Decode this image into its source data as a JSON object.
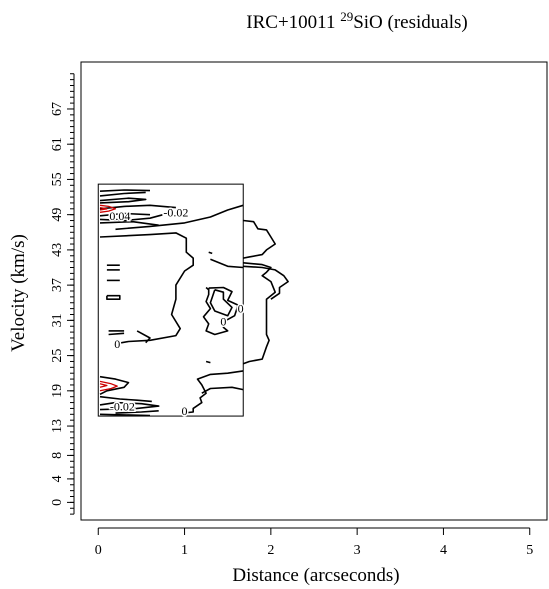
{
  "chart_data": {
    "type": "contour",
    "title_prefix": "IRC+10011 ",
    "title_superscript": "29",
    "title_suffix": "SiO (residuals)",
    "xlabel": "Distance (arcseconds)",
    "ylabel": "Velocity (km/s)",
    "xlim": [
      -0.2,
      5.2
    ],
    "ylim": [
      -3,
      75
    ],
    "x_ticks": [
      0,
      1,
      2,
      3,
      4,
      5
    ],
    "y_tick_labels": [
      0,
      4,
      8,
      13,
      19,
      25,
      31,
      37,
      43,
      49,
      55,
      61,
      67
    ],
    "y_minor_ticks": [
      -2,
      -1,
      0,
      1,
      2,
      3,
      4,
      5,
      6,
      7,
      8,
      9,
      10,
      11,
      12,
      13,
      14,
      15,
      16,
      17,
      18,
      19,
      20,
      21,
      22,
      23,
      24,
      25,
      26,
      27,
      28,
      29,
      30,
      31,
      32,
      33,
      34,
      35,
      36,
      37,
      38,
      39,
      40,
      41,
      42,
      43,
      44,
      45,
      46,
      47,
      48,
      49,
      50,
      51,
      52,
      53,
      54,
      55,
      56,
      57,
      58,
      59,
      60,
      61,
      62,
      63,
      64,
      65,
      66,
      67,
      68,
      69,
      70,
      71,
      72,
      73
    ],
    "data_box": {
      "x": [
        0,
        1.68
      ],
      "y": [
        14.7,
        54.2
      ]
    },
    "contour_labels": [
      {
        "text": "0.04",
        "x": 0.25,
        "y": 48.8,
        "color": "#000000"
      },
      {
        "text": "-0.02",
        "x": 0.9,
        "y": 49.4,
        "color": "#000000"
      },
      {
        "text": "0",
        "x": 1.65,
        "y": 33.0,
        "color": "#000000"
      },
      {
        "text": "0",
        "x": 1.45,
        "y": 30.8,
        "color": "#000000"
      },
      {
        "text": "0",
        "x": 0.22,
        "y": 27.0,
        "color": "#000000"
      },
      {
        "text": "-0.02",
        "x": 0.28,
        "y": 16.3,
        "color": "#000000"
      },
      {
        "text": "0",
        "x": 1.0,
        "y": 15.6,
        "color": "#000000"
      }
    ],
    "contours": [
      {
        "level": 0,
        "color": "#000000",
        "points": [
          [
            0.2,
            46.5
          ],
          [
            0.6,
            47.0
          ],
          [
            1.0,
            47.6
          ],
          [
            1.3,
            48.6
          ],
          [
            1.5,
            49.8
          ],
          [
            1.68,
            50.6
          ]
        ]
      },
      {
        "level": 0,
        "color": "#000000",
        "points": [
          [
            0.02,
            45.2
          ],
          [
            0.6,
            45.6
          ],
          [
            0.9,
            45.9
          ],
          [
            1.02,
            45.0
          ],
          [
            1.02,
            42.6
          ],
          [
            1.1,
            41.6
          ],
          [
            1.1,
            40.4
          ],
          [
            1.0,
            39.4
          ],
          [
            0.9,
            37.0
          ],
          [
            0.9,
            34.6
          ],
          [
            0.85,
            32.0
          ],
          [
            0.95,
            29.6
          ],
          [
            0.9,
            28.4
          ],
          [
            0.6,
            27.6
          ],
          [
            0.35,
            27.4
          ],
          [
            0.2,
            27.0
          ]
        ]
      },
      {
        "level": 0,
        "color": "#000000",
        "points": [
          [
            1.68,
            48.0
          ],
          [
            1.8,
            47.8
          ],
          [
            1.85,
            46.6
          ],
          [
            1.95,
            46.4
          ],
          [
            2.0,
            45.2
          ],
          [
            2.05,
            44.0
          ],
          [
            1.95,
            43.0
          ],
          [
            1.9,
            42.2
          ],
          [
            1.75,
            41.8
          ],
          [
            1.68,
            41.6
          ]
        ]
      },
      {
        "level": 0,
        "color": "#000000",
        "points": [
          [
            1.68,
            40.8
          ],
          [
            1.9,
            40.5
          ],
          [
            2.0,
            40.0
          ],
          [
            1.95,
            39.2
          ],
          [
            1.9,
            38.6
          ],
          [
            2.0,
            37.6
          ],
          [
            2.05,
            35.8
          ],
          [
            1.95,
            34.6
          ],
          [
            1.95,
            32.6
          ],
          [
            1.95,
            30.8
          ],
          [
            1.95,
            28.6
          ],
          [
            1.98,
            27.6
          ],
          [
            1.95,
            26.5
          ],
          [
            1.9,
            24.4
          ],
          [
            1.75,
            24.0
          ],
          [
            1.68,
            23.6
          ]
        ]
      },
      {
        "level": 0,
        "color": "#000000",
        "points": [
          [
            1.3,
            41.4
          ],
          [
            1.5,
            40.2
          ],
          [
            1.68,
            40.0
          ]
        ]
      },
      {
        "level": 0,
        "color": "#000000",
        "points": [
          [
            1.68,
            40.2
          ],
          [
            1.9,
            40.0
          ],
          [
            2.05,
            39.6
          ],
          [
            2.15,
            38.6
          ],
          [
            2.2,
            37.6
          ],
          [
            2.1,
            36.6
          ],
          [
            2.1,
            35.6
          ],
          [
            2.0,
            34.6
          ]
        ]
      },
      {
        "level": 0,
        "color": "#000000",
        "points": [
          [
            1.28,
            36.5
          ],
          [
            1.45,
            36.6
          ],
          [
            1.55,
            35.9
          ],
          [
            1.5,
            34.4
          ],
          [
            1.62,
            33.6
          ],
          [
            1.58,
            31.8
          ],
          [
            1.48,
            31.0
          ],
          [
            1.45,
            29.8
          ],
          [
            1.5,
            29.2
          ],
          [
            1.35,
            28.6
          ],
          [
            1.25,
            29.2
          ],
          [
            1.28,
            30.4
          ],
          [
            1.22,
            31.6
          ],
          [
            1.3,
            33.0
          ],
          [
            1.25,
            34.2
          ],
          [
            1.28,
            35.4
          ],
          [
            1.28,
            36.5
          ]
        ]
      },
      {
        "level": 0,
        "color": "#000000",
        "points": [
          [
            1.35,
            36.2
          ],
          [
            1.3,
            34.0
          ],
          [
            1.35,
            32.6
          ],
          [
            1.5,
            31.8
          ],
          [
            1.55,
            33.2
          ],
          [
            1.45,
            34.6
          ],
          [
            1.45,
            35.8
          ],
          [
            1.35,
            36.2
          ]
        ]
      },
      {
        "level": 0,
        "color": "#000000",
        "points": [
          [
            0.45,
            29.2
          ],
          [
            0.6,
            28.0
          ],
          [
            0.55,
            27.2
          ]
        ]
      },
      {
        "level": 0,
        "color": "#000000",
        "points": [
          [
            1.68,
            22.4
          ],
          [
            1.5,
            22.0
          ],
          [
            1.3,
            21.8
          ],
          [
            1.15,
            21.0
          ],
          [
            1.2,
            20.0
          ],
          [
            1.25,
            18.6
          ],
          [
            1.18,
            17.8
          ],
          [
            1.2,
            17.0
          ],
          [
            1.1,
            16.0
          ],
          [
            1.1,
            15.4
          ],
          [
            0.98,
            15.2
          ]
        ]
      },
      {
        "level": 0,
        "color": "#000000",
        "points": [
          [
            1.2,
            18.6
          ],
          [
            1.3,
            19.4
          ],
          [
            1.55,
            19.6
          ],
          [
            1.68,
            19.2
          ]
        ]
      },
      {
        "level": 0,
        "color": "#000000",
        "points": [
          [
            0.2,
            15.2
          ],
          [
            0.5,
            15.4
          ],
          [
            0.7,
            15.6
          ]
        ]
      },
      {
        "level": -0.02,
        "color": "#000000",
        "points": [
          [
            0.02,
            53.0
          ],
          [
            0.3,
            53.2
          ],
          [
            0.6,
            53.1
          ]
        ]
      },
      {
        "level": -0.02,
        "color": "#000000",
        "points": [
          [
            0.02,
            52.2
          ],
          [
            0.3,
            52.6
          ],
          [
            0.55,
            52.8
          ]
        ]
      },
      {
        "level": -0.02,
        "color": "#000000",
        "points": [
          [
            0.02,
            51.4
          ],
          [
            0.35,
            51.8
          ],
          [
            0.55,
            51.6
          ],
          [
            0.35,
            51.2
          ],
          [
            0.02,
            51.0
          ]
        ]
      },
      {
        "level": -0.02,
        "color": "#000000",
        "points": [
          [
            0.02,
            50.0
          ],
          [
            0.3,
            50.4
          ],
          [
            0.6,
            50.6
          ],
          [
            0.9,
            50.2
          ]
        ]
      },
      {
        "level": -0.02,
        "color": "#000000",
        "points": [
          [
            0.02,
            48.8
          ],
          [
            0.3,
            49.2
          ],
          [
            0.6,
            49.0
          ]
        ]
      },
      {
        "level": -0.02,
        "color": "#000000",
        "points": [
          [
            0.02,
            48.2
          ],
          [
            0.3,
            48.0
          ],
          [
            0.6,
            48.4
          ],
          [
            0.75,
            49.0
          ]
        ]
      },
      {
        "level": -0.02,
        "color": "#000000",
        "points": [
          [
            0.02,
            47.6
          ],
          [
            0.4,
            47.8
          ],
          [
            0.7,
            47.2
          ]
        ]
      },
      {
        "level": -0.02,
        "color": "#000000",
        "points": [
          [
            0.1,
            40.4
          ],
          [
            0.25,
            40.4
          ]
        ]
      },
      {
        "level": -0.02,
        "color": "#000000",
        "points": [
          [
            0.1,
            39.6
          ],
          [
            0.25,
            39.6
          ]
        ]
      },
      {
        "level": -0.02,
        "color": "#000000",
        "points": [
          [
            0.1,
            37.8
          ],
          [
            0.25,
            37.8
          ]
        ]
      },
      {
        "level": -0.02,
        "color": "#000000",
        "points": [
          [
            0.1,
            35.2
          ],
          [
            0.25,
            35.2
          ],
          [
            0.25,
            34.6
          ],
          [
            0.1,
            34.6
          ],
          [
            0.1,
            35.2
          ]
        ]
      },
      {
        "level": -0.02,
        "color": "#000000",
        "points": [
          [
            0.12,
            29.2
          ],
          [
            0.3,
            29.2
          ]
        ]
      },
      {
        "level": -0.02,
        "color": "#000000",
        "points": [
          [
            0.12,
            28.6
          ],
          [
            0.3,
            28.8
          ]
        ]
      },
      {
        "level": -0.02,
        "color": "#000000",
        "points": [
          [
            0.02,
            21.4
          ],
          [
            0.2,
            21.0
          ],
          [
            0.35,
            20.4
          ],
          [
            0.3,
            19.6
          ],
          [
            0.1,
            19.0
          ],
          [
            0.02,
            18.4
          ]
        ]
      },
      {
        "level": -0.02,
        "color": "#000000",
        "points": [
          [
            0.02,
            18.0
          ],
          [
            0.25,
            17.6
          ],
          [
            0.45,
            17.4
          ],
          [
            0.62,
            17.2
          ]
        ]
      },
      {
        "level": -0.02,
        "color": "#000000",
        "points": [
          [
            0.02,
            16.6
          ],
          [
            0.2,
            17.0
          ],
          [
            0.5,
            16.8
          ],
          [
            0.7,
            16.4
          ],
          [
            0.45,
            16.0
          ],
          [
            0.25,
            15.9
          ],
          [
            0.02,
            15.8
          ]
        ]
      },
      {
        "level": -0.02,
        "color": "#000000",
        "points": [
          [
            0.02,
            15.0
          ],
          [
            0.3,
            14.9
          ],
          [
            0.6,
            14.8
          ]
        ]
      },
      {
        "level": -0.02,
        "color": "#000000",
        "points": [
          [
            1.25,
            24.0
          ],
          [
            1.3,
            23.8
          ]
        ]
      },
      {
        "level": -0.02,
        "color": "#000000",
        "points": [
          [
            1.28,
            42.6
          ],
          [
            1.32,
            42.4
          ]
        ]
      },
      {
        "level": -0.02,
        "color": "#000000",
        "points": [
          [
            1.25,
            36.6
          ],
          [
            1.28,
            36.2
          ]
        ]
      },
      {
        "level": 0.02,
        "color": "#cc0000",
        "points": [
          [
            0.02,
            50.6
          ],
          [
            0.12,
            50.4
          ],
          [
            0.2,
            50.0
          ],
          [
            0.12,
            49.6
          ],
          [
            0.02,
            49.4
          ]
        ]
      },
      {
        "level": 0.04,
        "color": "#cc0000",
        "points": [
          [
            0.02,
            50.2
          ],
          [
            0.1,
            50.0
          ],
          [
            0.02,
            49.8
          ]
        ]
      },
      {
        "level": 0.02,
        "color": "#cc0000",
        "points": [
          [
            0.02,
            20.6
          ],
          [
            0.15,
            20.2
          ],
          [
            0.22,
            19.8
          ],
          [
            0.15,
            19.4
          ],
          [
            0.02,
            19.0
          ]
        ]
      },
      {
        "level": 0.04,
        "color": "#cc0000",
        "points": [
          [
            0.02,
            20.2
          ],
          [
            0.1,
            19.9
          ],
          [
            0.02,
            19.6
          ]
        ]
      }
    ]
  }
}
